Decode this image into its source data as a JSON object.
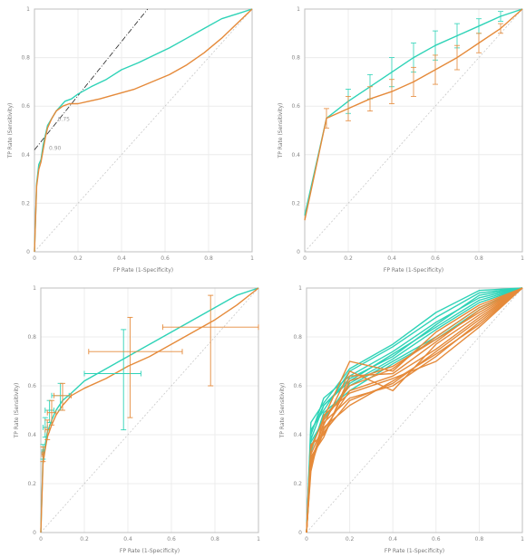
{
  "colors": {
    "green": "#2ed3b7",
    "orange": "#e58a3a",
    "diag": "#c8c8c8",
    "tangent": "#222222"
  },
  "chart_data": [
    {
      "id": "roc-top-left",
      "type": "line",
      "xlabel": "FP Rate (1-Specificity)",
      "ylabel": "TP Rate (Sensitivity)",
      "xlim": [
        0,
        1
      ],
      "ylim": [
        0,
        1
      ],
      "xticks": [
        0,
        0.2,
        0.4,
        0.6,
        0.8,
        1
      ],
      "xtick_labels": [
        "0",
        "0.2",
        "0.4",
        "0.6",
        "0.8",
        "1"
      ],
      "yticks": [
        0,
        0.2,
        0.4,
        0.6,
        0.8,
        1
      ],
      "ytick_labels": [
        "0",
        "0.2",
        "0.4",
        "0.6",
        "0.8",
        "1"
      ],
      "grid": true,
      "annotations": [
        "0.75",
        "0.90"
      ],
      "tangent": {
        "x": [
          0,
          0.52
        ],
        "y": [
          0.42,
          1.0
        ]
      },
      "series": [
        {
          "color": "#2ed3b7",
          "x": [
            0,
            0.01,
            0.02,
            0.03,
            0.04,
            0.05,
            0.06,
            0.08,
            0.1,
            0.12,
            0.14,
            0.17,
            0.2,
            0.26,
            0.33,
            0.4,
            0.48,
            0.55,
            0.62,
            0.7,
            0.78,
            0.86,
            0.93,
            1.0
          ],
          "y": [
            0,
            0.28,
            0.36,
            0.38,
            0.44,
            0.48,
            0.52,
            0.55,
            0.58,
            0.6,
            0.62,
            0.63,
            0.65,
            0.68,
            0.71,
            0.75,
            0.78,
            0.81,
            0.84,
            0.88,
            0.92,
            0.96,
            0.98,
            1.0
          ]
        },
        {
          "color": "#e58a3a",
          "x": [
            0,
            0.01,
            0.02,
            0.03,
            0.04,
            0.05,
            0.06,
            0.08,
            0.1,
            0.13,
            0.16,
            0.2,
            0.25,
            0.3,
            0.38,
            0.46,
            0.54,
            0.62,
            0.7,
            0.78,
            0.86,
            0.93,
            1.0
          ],
          "y": [
            0,
            0.27,
            0.34,
            0.37,
            0.42,
            0.47,
            0.51,
            0.55,
            0.58,
            0.6,
            0.61,
            0.61,
            0.62,
            0.63,
            0.65,
            0.67,
            0.7,
            0.73,
            0.77,
            0.82,
            0.88,
            0.94,
            1.0
          ]
        }
      ]
    },
    {
      "id": "roc-top-right",
      "type": "line",
      "xlabel": "FP Rate (1-Specificity)",
      "ylabel": "TP Rate (Sensitivity)",
      "xlim": [
        0,
        1
      ],
      "ylim": [
        0,
        1
      ],
      "xticks": [
        0,
        0.2,
        0.4,
        0.6,
        0.8,
        1
      ],
      "xtick_labels": [
        "0",
        "0.2",
        "0.4",
        "0.6",
        "0.8",
        "1"
      ],
      "yticks": [
        0,
        0.2,
        0.4,
        0.6,
        0.8,
        1
      ],
      "ytick_labels": [
        "0",
        "0.2",
        "0.4",
        "0.6",
        "0.8",
        "1"
      ],
      "grid": true,
      "series": [
        {
          "color": "#2ed3b7",
          "x": [
            0,
            0.1,
            0.2,
            0.3,
            0.4,
            0.5,
            0.6,
            0.7,
            0.8,
            0.9,
            1.0
          ],
          "y": [
            0.15,
            0.55,
            0.62,
            0.68,
            0.74,
            0.8,
            0.85,
            0.89,
            0.93,
            0.97,
            1.0
          ],
          "err": [
            0,
            0,
            0.05,
            0.05,
            0.06,
            0.06,
            0.06,
            0.05,
            0.03,
            0.02,
            0
          ]
        },
        {
          "color": "#e58a3a",
          "x": [
            0,
            0.1,
            0.2,
            0.3,
            0.4,
            0.5,
            0.6,
            0.7,
            0.8,
            0.9,
            1.0
          ],
          "y": [
            0.13,
            0.55,
            0.59,
            0.63,
            0.66,
            0.7,
            0.75,
            0.8,
            0.86,
            0.92,
            1.0
          ],
          "err": [
            0,
            0.04,
            0.05,
            0.05,
            0.05,
            0.06,
            0.06,
            0.05,
            0.04,
            0.02,
            0
          ]
        }
      ]
    },
    {
      "id": "roc-bottom-left",
      "type": "line",
      "xlabel": "FP Rate (1-Specificity)",
      "ylabel": "TP Rate (Sensitivity)",
      "xlim": [
        0,
        1
      ],
      "ylim": [
        0,
        1
      ],
      "xticks": [
        0,
        0.2,
        0.4,
        0.6,
        0.8,
        1
      ],
      "xtick_labels": [
        "0",
        "0.2",
        "0.4",
        "0.6",
        "0.8",
        "1"
      ],
      "yticks": [
        0,
        0.2,
        0.4,
        0.6,
        0.8,
        1
      ],
      "ytick_labels": [
        "0",
        "0.2",
        "0.4",
        "0.6",
        "0.8",
        "1"
      ],
      "grid": true,
      "series": [
        {
          "color": "#2ed3b7",
          "x": [
            0,
            0.01,
            0.02,
            0.03,
            0.05,
            0.07,
            0.1,
            0.14,
            0.2,
            0.3,
            0.4,
            0.5,
            0.6,
            0.7,
            0.8,
            0.9,
            1.0
          ],
          "y": [
            0,
            0.3,
            0.36,
            0.41,
            0.46,
            0.5,
            0.54,
            0.57,
            0.62,
            0.67,
            0.72,
            0.77,
            0.82,
            0.87,
            0.92,
            0.97,
            1.0
          ]
        },
        {
          "color": "#e58a3a",
          "x": [
            0,
            0.01,
            0.02,
            0.03,
            0.05,
            0.07,
            0.1,
            0.14,
            0.2,
            0.3,
            0.4,
            0.5,
            0.6,
            0.7,
            0.8,
            0.9,
            1.0
          ],
          "y": [
            0,
            0.28,
            0.34,
            0.39,
            0.44,
            0.48,
            0.52,
            0.56,
            0.59,
            0.63,
            0.68,
            0.72,
            0.77,
            0.82,
            0.87,
            0.93,
            1.0
          ]
        }
      ],
      "error_points": [
        {
          "color": "#2ed3b7",
          "x": 0.38,
          "y": 0.65,
          "xerr": [
            0.18,
            0.08
          ],
          "yerr": [
            0.23,
            0.18
          ]
        },
        {
          "color": "#2ed3b7",
          "x": 0.09,
          "y": 0.56,
          "xerr": [
            0.04,
            0.04
          ],
          "yerr": [
            0.06,
            0.05
          ]
        },
        {
          "color": "#2ed3b7",
          "x": 0.04,
          "y": 0.5,
          "xerr": [
            0.02,
            0.02
          ],
          "yerr": [
            0.05,
            0.04
          ]
        },
        {
          "color": "#2ed3b7",
          "x": 0.02,
          "y": 0.43,
          "xerr": [
            0.01,
            0.01
          ],
          "yerr": [
            0.04,
            0.04
          ]
        },
        {
          "color": "#2ed3b7",
          "x": 0.01,
          "y": 0.33,
          "xerr": [
            0.005,
            0.005
          ],
          "yerr": [
            0.03,
            0.03
          ]
        },
        {
          "color": "#e58a3a",
          "x": 0.41,
          "y": 0.74,
          "xerr": [
            0.19,
            0.24
          ],
          "yerr": [
            0.27,
            0.14
          ]
        },
        {
          "color": "#e58a3a",
          "x": 0.78,
          "y": 0.84,
          "xerr": [
            0.22,
            0.22
          ],
          "yerr": [
            0.24,
            0.13
          ]
        },
        {
          "color": "#e58a3a",
          "x": 0.1,
          "y": 0.56,
          "xerr": [
            0.04,
            0.04
          ],
          "yerr": [
            0.06,
            0.05
          ]
        },
        {
          "color": "#e58a3a",
          "x": 0.05,
          "y": 0.49,
          "xerr": [
            0.02,
            0.02
          ],
          "yerr": [
            0.05,
            0.05
          ]
        },
        {
          "color": "#e58a3a",
          "x": 0.03,
          "y": 0.42,
          "xerr": [
            0.01,
            0.01
          ],
          "yerr": [
            0.04,
            0.04
          ]
        },
        {
          "color": "#e58a3a",
          "x": 0.01,
          "y": 0.32,
          "xerr": [
            0.005,
            0.005
          ],
          "yerr": [
            0.03,
            0.03
          ]
        }
      ]
    },
    {
      "id": "roc-bottom-right",
      "type": "line",
      "xlabel": "FP Rate (1-Specificity)",
      "ylabel": "TP Rate (Sensitivity)",
      "xlim": [
        0,
        1
      ],
      "ylim": [
        0,
        1
      ],
      "xticks": [
        0,
        0.2,
        0.4,
        0.6,
        0.8,
        1
      ],
      "xtick_labels": [
        "0",
        "0.2",
        "0.4",
        "0.6",
        "0.8",
        "1"
      ],
      "yticks": [
        0,
        0.2,
        0.4,
        0.6,
        0.8,
        1
      ],
      "ytick_labels": [
        "0",
        "0.2",
        "0.4",
        "0.6",
        "0.8",
        "1"
      ],
      "grid": true,
      "series": [
        {
          "color": "#2ed3b7",
          "x": [
            0,
            0.02,
            0.08,
            0.2,
            0.4,
            0.6,
            0.8,
            1.0
          ],
          "y": [
            0,
            0.38,
            0.52,
            0.62,
            0.73,
            0.84,
            0.95,
            1.0
          ]
        },
        {
          "color": "#2ed3b7",
          "x": [
            0,
            0.02,
            0.08,
            0.2,
            0.4,
            0.6,
            0.8,
            1.0
          ],
          "y": [
            0,
            0.42,
            0.5,
            0.66,
            0.76,
            0.88,
            0.98,
            1.0
          ]
        },
        {
          "color": "#2ed3b7",
          "x": [
            0,
            0.02,
            0.08,
            0.2,
            0.4,
            0.6,
            0.8,
            1.0
          ],
          "y": [
            0,
            0.35,
            0.47,
            0.6,
            0.7,
            0.8,
            0.92,
            1.0
          ]
        },
        {
          "color": "#2ed3b7",
          "x": [
            0,
            0.02,
            0.08,
            0.2,
            0.4,
            0.6,
            0.8,
            1.0
          ],
          "y": [
            0,
            0.4,
            0.55,
            0.64,
            0.74,
            0.86,
            0.96,
            1.0
          ]
        },
        {
          "color": "#2ed3b7",
          "x": [
            0,
            0.02,
            0.08,
            0.2,
            0.4,
            0.6,
            0.8,
            1.0
          ],
          "y": [
            0,
            0.33,
            0.49,
            0.58,
            0.69,
            0.79,
            0.91,
            1.0
          ]
        },
        {
          "color": "#2ed3b7",
          "x": [
            0,
            0.02,
            0.08,
            0.2,
            0.4,
            0.6,
            0.8,
            1.0
          ],
          "y": [
            0,
            0.45,
            0.53,
            0.67,
            0.77,
            0.9,
            0.99,
            1.0
          ]
        },
        {
          "color": "#2ed3b7",
          "x": [
            0,
            0.02,
            0.08,
            0.2,
            0.4,
            0.6,
            0.8,
            1.0
          ],
          "y": [
            0,
            0.37,
            0.46,
            0.61,
            0.71,
            0.83,
            0.94,
            1.0
          ]
        },
        {
          "color": "#2ed3b7",
          "x": [
            0,
            0.02,
            0.08,
            0.2,
            0.4,
            0.6,
            0.8,
            1.0
          ],
          "y": [
            0,
            0.41,
            0.52,
            0.63,
            0.72,
            0.85,
            0.97,
            1.0
          ]
        },
        {
          "color": "#e58a3a",
          "x": [
            0,
            0.02,
            0.08,
            0.2,
            0.4,
            0.6,
            0.8,
            1.0
          ],
          "y": [
            0,
            0.3,
            0.42,
            0.58,
            0.64,
            0.75,
            0.88,
            1.0
          ]
        },
        {
          "color": "#e58a3a",
          "x": [
            0,
            0.02,
            0.08,
            0.2,
            0.4,
            0.6,
            0.8,
            1.0
          ],
          "y": [
            0,
            0.34,
            0.47,
            0.7,
            0.66,
            0.82,
            0.93,
            1.0
          ]
        },
        {
          "color": "#e58a3a",
          "x": [
            0,
            0.02,
            0.08,
            0.2,
            0.4,
            0.6,
            0.8,
            1.0
          ],
          "y": [
            0,
            0.28,
            0.45,
            0.55,
            0.6,
            0.72,
            0.86,
            1.0
          ]
        },
        {
          "color": "#e58a3a",
          "x": [
            0,
            0.02,
            0.08,
            0.2,
            0.4,
            0.6,
            0.8,
            1.0
          ],
          "y": [
            0,
            0.36,
            0.4,
            0.62,
            0.68,
            0.79,
            0.9,
            1.0
          ]
        },
        {
          "color": "#e58a3a",
          "x": [
            0,
            0.02,
            0.08,
            0.2,
            0.4,
            0.6,
            0.8,
            1.0
          ],
          "y": [
            0,
            0.25,
            0.48,
            0.57,
            0.63,
            0.7,
            0.84,
            1.0
          ]
        },
        {
          "color": "#e58a3a",
          "x": [
            0,
            0.02,
            0.08,
            0.2,
            0.4,
            0.6,
            0.8,
            1.0
          ],
          "y": [
            0,
            0.32,
            0.44,
            0.66,
            0.58,
            0.77,
            0.89,
            1.0
          ]
        },
        {
          "color": "#e58a3a",
          "x": [
            0,
            0.02,
            0.08,
            0.2,
            0.4,
            0.6,
            0.8,
            1.0
          ],
          "y": [
            0,
            0.29,
            0.41,
            0.54,
            0.61,
            0.74,
            0.87,
            1.0
          ]
        },
        {
          "color": "#e58a3a",
          "x": [
            0,
            0.02,
            0.08,
            0.2,
            0.4,
            0.6,
            0.8,
            1.0
          ],
          "y": [
            0,
            0.35,
            0.46,
            0.6,
            0.67,
            0.8,
            0.92,
            1.0
          ]
        },
        {
          "color": "#e58a3a",
          "x": [
            0,
            0.02,
            0.08,
            0.2,
            0.4,
            0.6,
            0.8,
            1.0
          ],
          "y": [
            0,
            0.27,
            0.43,
            0.52,
            0.62,
            0.73,
            0.85,
            1.0
          ]
        },
        {
          "color": "#e58a3a",
          "x": [
            0,
            0.02,
            0.08,
            0.2,
            0.4,
            0.6,
            0.8,
            1.0
          ],
          "y": [
            0,
            0.31,
            0.39,
            0.64,
            0.65,
            0.78,
            0.91,
            1.0
          ]
        }
      ]
    }
  ]
}
